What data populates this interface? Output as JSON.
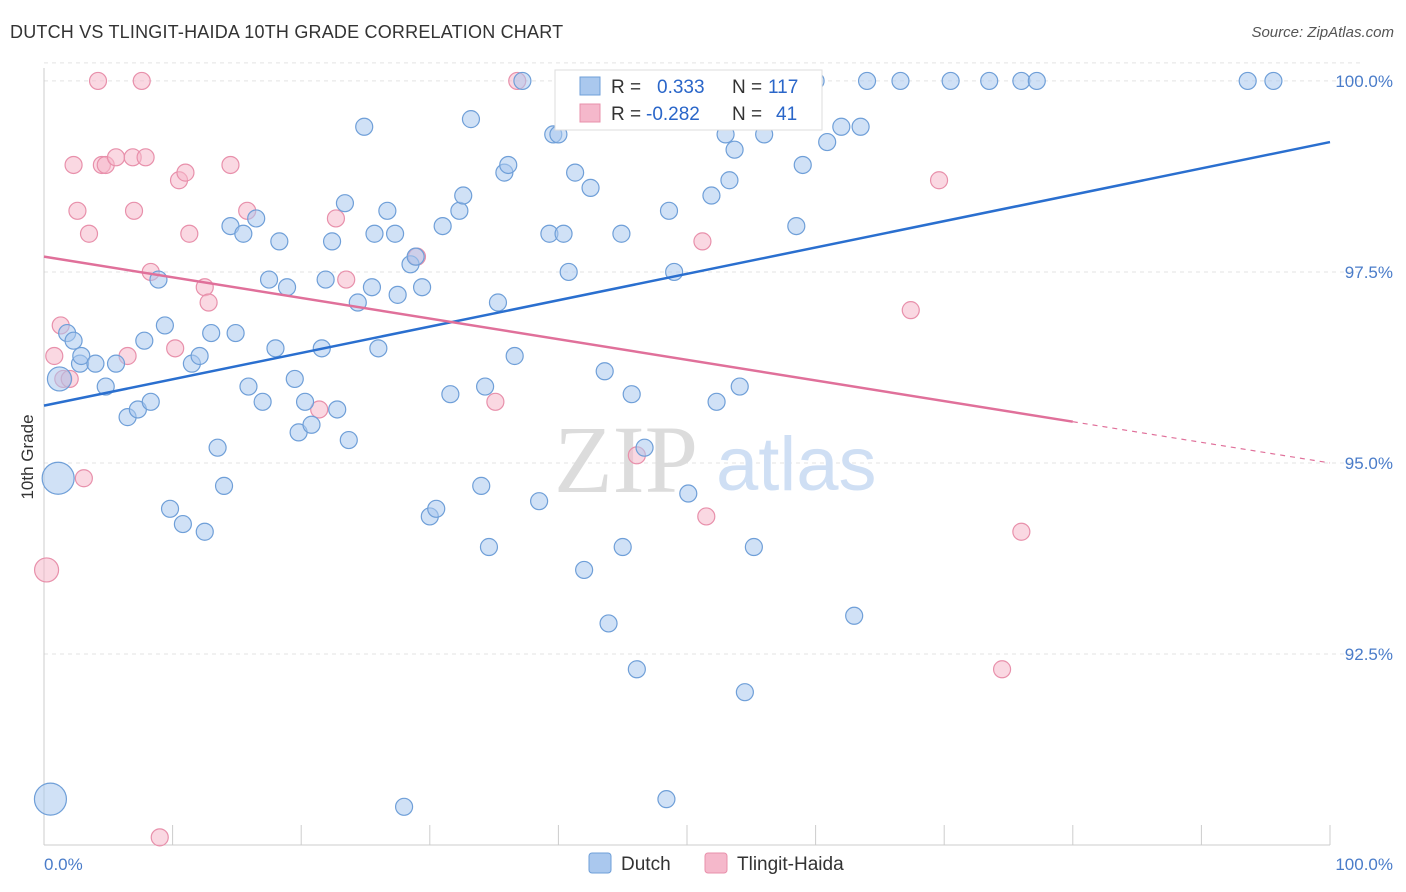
{
  "title": "DUTCH VS TLINGIT-HAIDA 10TH GRADE CORRELATION CHART",
  "source": "Source: ZipAtlas.com",
  "watermark": {
    "zip": "ZIP",
    "atlas": "atlas"
  },
  "colors": {
    "dutch_fill": "#aac8ee",
    "dutch_stroke": "#6f9fd8",
    "dutch_line": "#2a6fcf",
    "tlingit_fill": "#f5b8cb",
    "tlingit_stroke": "#e890ab",
    "tlingit_line": "#e0709a",
    "grid": "#e3e3e3",
    "tick_text": "#4a7cc9"
  },
  "legend": {
    "rows": [
      {
        "r_label": "R =",
        "r_value": "0.333",
        "n_label": "N =",
        "n_value": "117"
      },
      {
        "r_label": "R =",
        "r_value": "-0.282",
        "n_label": "N =",
        "n_value": "41"
      }
    ],
    "placement": "top-center"
  },
  "chart_data": {
    "type": "scatter",
    "xlabel": "",
    "ylabel": "10th Grade",
    "xlim": [
      0,
      100
    ],
    "ylim": [
      90.0,
      100.3
    ],
    "x_tick_labels": [
      "0.0%",
      "100.0%"
    ],
    "y_ticks": [
      {
        "value": 100.0,
        "label": "100.0%"
      },
      {
        "value": 97.5,
        "label": "97.5%"
      },
      {
        "value": 95.0,
        "label": "95.0%"
      },
      {
        "value": 92.5,
        "label": "92.5%"
      }
    ],
    "grid": "horizontal dashed",
    "series": [
      {
        "name": "Dutch",
        "r": 0.333,
        "n": 117,
        "trend": {
          "x": [
            0,
            100
          ],
          "y": [
            95.75,
            99.2
          ]
        },
        "points": [
          [
            1.1,
            94.8,
            3
          ],
          [
            0.5,
            90.6,
            3
          ],
          [
            1.2,
            96.1,
            2
          ],
          [
            1.8,
            96.7,
            1
          ],
          [
            2.3,
            96.6,
            1
          ],
          [
            2.8,
            96.3,
            1
          ],
          [
            2.9,
            96.4,
            1
          ],
          [
            4.0,
            96.3,
            1
          ],
          [
            4.8,
            96.0,
            1
          ],
          [
            5.6,
            96.3,
            1
          ],
          [
            6.5,
            95.6,
            1
          ],
          [
            7.3,
            95.7,
            1
          ],
          [
            7.8,
            96.6,
            1
          ],
          [
            8.3,
            95.8,
            1
          ],
          [
            8.9,
            97.4,
            1
          ],
          [
            9.4,
            96.8,
            1
          ],
          [
            9.8,
            94.4,
            1
          ],
          [
            10.8,
            94.2,
            1
          ],
          [
            11.5,
            96.3,
            1
          ],
          [
            12.1,
            96.4,
            1
          ],
          [
            12.5,
            94.1,
            1
          ],
          [
            13.0,
            96.7,
            1
          ],
          [
            13.5,
            95.2,
            1
          ],
          [
            14.0,
            94.7,
            1
          ],
          [
            14.5,
            98.1,
            1
          ],
          [
            14.9,
            96.7,
            1
          ],
          [
            15.5,
            98.0,
            1
          ],
          [
            15.9,
            96.0,
            1
          ],
          [
            16.5,
            98.2,
            1
          ],
          [
            17.0,
            95.8,
            1
          ],
          [
            17.5,
            97.4,
            1
          ],
          [
            18.0,
            96.5,
            1
          ],
          [
            18.3,
            97.9,
            1
          ],
          [
            18.9,
            97.3,
            1
          ],
          [
            19.5,
            96.1,
            1
          ],
          [
            19.8,
            95.4,
            1
          ],
          [
            20.3,
            95.8,
            1
          ],
          [
            20.8,
            95.5,
            1
          ],
          [
            21.6,
            96.5,
            1
          ],
          [
            21.9,
            97.4,
            1
          ],
          [
            22.4,
            97.9,
            1
          ],
          [
            22.8,
            95.7,
            1
          ],
          [
            23.4,
            98.4,
            1
          ],
          [
            23.7,
            95.3,
            1
          ],
          [
            24.4,
            97.1,
            1
          ],
          [
            24.9,
            99.4,
            1
          ],
          [
            25.5,
            97.3,
            1
          ],
          [
            25.7,
            98.0,
            1
          ],
          [
            26.0,
            96.5,
            1
          ],
          [
            26.7,
            98.3,
            1
          ],
          [
            27.3,
            98.0,
            1
          ],
          [
            27.5,
            97.2,
            1
          ],
          [
            28.0,
            90.5,
            1
          ],
          [
            28.5,
            97.6,
            1
          ],
          [
            28.9,
            97.7,
            1
          ],
          [
            29.4,
            97.3,
            1
          ],
          [
            30.0,
            94.3,
            1
          ],
          [
            30.5,
            94.4,
            1
          ],
          [
            31.0,
            98.1,
            1
          ],
          [
            31.6,
            95.9,
            1
          ],
          [
            32.3,
            98.3,
            1
          ],
          [
            32.6,
            98.5,
            1
          ],
          [
            33.2,
            99.5,
            1
          ],
          [
            34.0,
            94.7,
            1
          ],
          [
            34.3,
            96.0,
            1
          ],
          [
            34.6,
            93.9,
            1
          ],
          [
            35.3,
            97.1,
            1
          ],
          [
            35.8,
            98.8,
            1
          ],
          [
            36.1,
            98.9,
            1
          ],
          [
            36.6,
            96.4,
            1
          ],
          [
            37.2,
            100.0,
            1
          ],
          [
            38.5,
            94.5,
            1
          ],
          [
            39.3,
            98.0,
            1
          ],
          [
            39.6,
            99.3,
            1
          ],
          [
            40.0,
            99.3,
            1
          ],
          [
            40.4,
            98.0,
            1
          ],
          [
            40.8,
            97.5,
            1
          ],
          [
            41.3,
            98.8,
            1
          ],
          [
            42.0,
            93.6,
            1
          ],
          [
            42.5,
            98.6,
            1
          ],
          [
            43.6,
            96.2,
            1
          ],
          [
            43.9,
            92.9,
            1
          ],
          [
            44.9,
            98.0,
            1
          ],
          [
            45.0,
            93.9,
            1
          ],
          [
            45.7,
            95.9,
            1
          ],
          [
            46.1,
            92.3,
            1
          ],
          [
            46.7,
            95.2,
            1
          ],
          [
            48.4,
            90.6,
            1
          ],
          [
            48.6,
            98.3,
            1
          ],
          [
            49.0,
            97.5,
            1
          ],
          [
            50.1,
            94.6,
            1
          ],
          [
            50.6,
            100.0,
            1
          ],
          [
            51.9,
            98.5,
            1
          ],
          [
            52.3,
            95.8,
            1
          ],
          [
            53.0,
            99.3,
            1
          ],
          [
            53.3,
            98.7,
            1
          ],
          [
            53.7,
            99.1,
            1
          ],
          [
            54.1,
            96.0,
            1
          ],
          [
            54.5,
            92.0,
            1
          ],
          [
            55.2,
            93.9,
            1
          ],
          [
            58.5,
            98.1,
            1
          ],
          [
            59.0,
            98.9,
            1
          ],
          [
            60.0,
            100.0,
            1
          ],
          [
            63.0,
            93.0,
            1
          ],
          [
            63.5,
            99.4,
            1
          ],
          [
            64.0,
            100.0,
            1
          ],
          [
            66.6,
            100.0,
            1
          ],
          [
            70.5,
            100.0,
            1
          ],
          [
            76.0,
            100.0,
            1
          ],
          [
            77.2,
            100.0,
            1
          ],
          [
            95.6,
            100.0,
            1
          ],
          [
            93.6,
            100.0,
            1
          ],
          [
            73.5,
            100.0,
            1
          ],
          [
            62.0,
            99.4,
            1
          ],
          [
            60.9,
            99.2,
            1
          ],
          [
            56.0,
            99.3,
            1
          ],
          [
            48.5,
            99.7,
            1
          ]
        ]
      },
      {
        "name": "Tlingit-Haida",
        "r": -0.282,
        "n": 41,
        "trend": {
          "x": [
            0,
            100
          ],
          "y": [
            97.7,
            95.0
          ],
          "solid_until_x": 80
        },
        "points": [
          [
            0.2,
            93.6,
            2
          ],
          [
            0.8,
            96.4,
            1
          ],
          [
            1.3,
            96.8,
            1
          ],
          [
            1.5,
            96.1,
            1
          ],
          [
            2.0,
            96.1,
            1
          ],
          [
            2.3,
            98.9,
            1
          ],
          [
            2.6,
            98.3,
            1
          ],
          [
            3.1,
            94.8,
            1
          ],
          [
            3.5,
            98.0,
            1
          ],
          [
            4.2,
            100.0,
            1
          ],
          [
            4.5,
            98.9,
            1
          ],
          [
            4.8,
            98.9,
            1
          ],
          [
            5.6,
            99.0,
            1
          ],
          [
            6.5,
            96.4,
            1
          ],
          [
            6.9,
            99.0,
            1
          ],
          [
            7.0,
            98.3,
            1
          ],
          [
            7.6,
            100.0,
            1
          ],
          [
            7.9,
            99.0,
            1
          ],
          [
            8.3,
            97.5,
            1
          ],
          [
            9.0,
            90.1,
            1
          ],
          [
            10.2,
            96.5,
            1
          ],
          [
            10.5,
            98.7,
            1
          ],
          [
            11.0,
            98.8,
            1
          ],
          [
            11.3,
            98.0,
            1
          ],
          [
            12.5,
            97.3,
            1
          ],
          [
            12.8,
            97.1,
            1
          ],
          [
            14.5,
            98.9,
            1
          ],
          [
            15.8,
            98.3,
            1
          ],
          [
            21.4,
            95.7,
            1
          ],
          [
            22.7,
            98.2,
            1
          ],
          [
            23.5,
            97.4,
            1
          ],
          [
            29.0,
            97.7,
            1
          ],
          [
            35.1,
            95.8,
            1
          ],
          [
            36.8,
            100.0,
            1
          ],
          [
            46.1,
            95.1,
            1
          ],
          [
            51.2,
            97.9,
            1
          ],
          [
            51.5,
            94.3,
            1
          ],
          [
            69.6,
            98.7,
            1
          ],
          [
            67.4,
            97.0,
            1
          ],
          [
            76.0,
            94.1,
            1
          ],
          [
            74.5,
            92.3,
            1
          ]
        ]
      }
    ]
  },
  "bottom_legend": [
    {
      "label": "Dutch"
    },
    {
      "label": "Tlingit-Haida"
    }
  ]
}
